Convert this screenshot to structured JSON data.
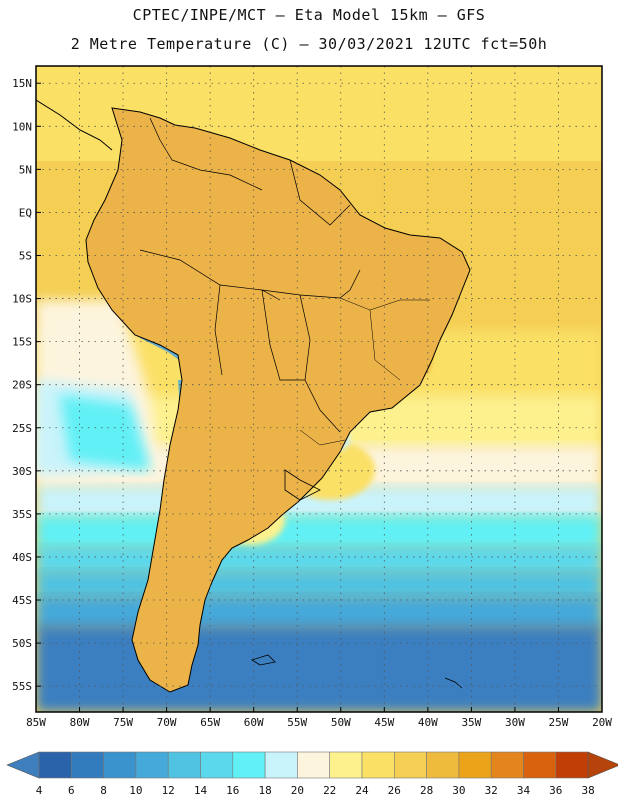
{
  "title": {
    "line1": "CPTEC/INPE/MCT –  Eta Model 15km – GFS",
    "line2": "2 Metre Temperature (C) – 30/03/2021 12UTC fct=50h"
  },
  "axes": {
    "lat_labels": [
      "15N",
      "10N",
      "5N",
      "EQ",
      "5S",
      "10S",
      "15S",
      "20S",
      "25S",
      "30S",
      "35S",
      "40S",
      "45S",
      "50S",
      "55S"
    ],
    "lat_values": [
      15,
      10,
      5,
      0,
      -5,
      -10,
      -15,
      -20,
      -25,
      -30,
      -35,
      -40,
      -45,
      -50,
      -55
    ],
    "lon_labels": [
      "85W",
      "80W",
      "75W",
      "70W",
      "65W",
      "60W",
      "55W",
      "50W",
      "45W",
      "40W",
      "35W",
      "30W",
      "25W",
      "20W"
    ],
    "lon_values": [
      -85,
      -80,
      -75,
      -70,
      -65,
      -60,
      -55,
      -50,
      -45,
      -40,
      -35,
      -30,
      -25,
      -20
    ],
    "lat_range": [
      -58,
      17
    ],
    "lon_range": [
      -85,
      -20
    ]
  },
  "colorbar": {
    "levels": [
      "4",
      "6",
      "8",
      "10",
      "12",
      "14",
      "16",
      "18",
      "20",
      "22",
      "24",
      "26",
      "28",
      "30",
      "32",
      "34",
      "36",
      "38"
    ],
    "colors": [
      "#2b63ab",
      "#327cbe",
      "#3a93cc",
      "#45a9d9",
      "#50c2e2",
      "#5cd8ec",
      "#61f0f5",
      "#c9f3fb",
      "#fdf4de",
      "#fdf18e",
      "#fbe066",
      "#f4cf54",
      "#eebb3c",
      "#eba419",
      "#e3841c",
      "#d8620e",
      "#c13e06"
    ],
    "left_arrow_color": "#3f7fbe",
    "right_arrow_color": "#b6440a"
  },
  "land_color": "#ecb349",
  "andes_color": "#5aa6d2",
  "south_ocean_color": "#3a7fc0"
}
